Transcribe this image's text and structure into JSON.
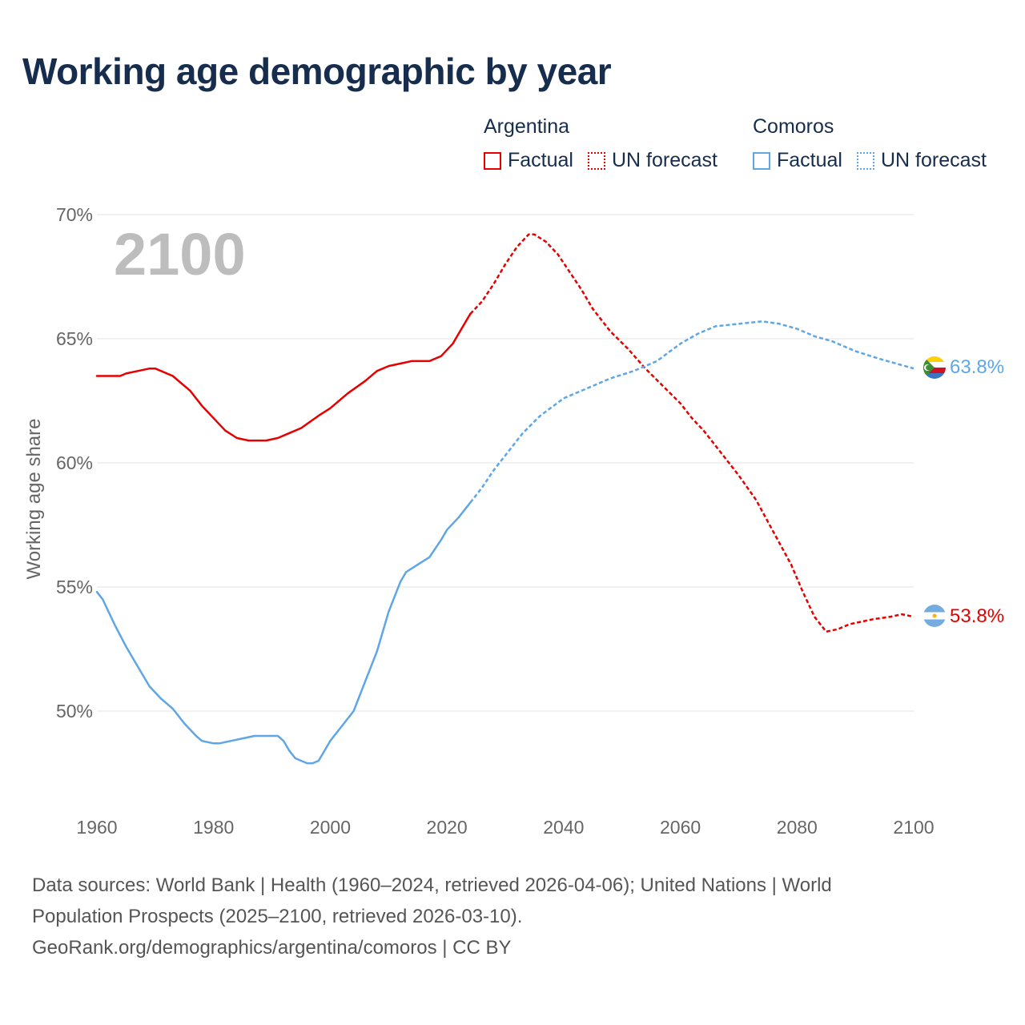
{
  "title": "Working age demographic by year",
  "legend": {
    "groups": [
      {
        "name": "Argentina",
        "color": "#e60000",
        "factual_label": "Factual",
        "forecast_label": "UN forecast"
      },
      {
        "name": "Comoros",
        "color": "#5fa6e6",
        "factual_label": "Factual",
        "forecast_label": "UN forecast"
      }
    ]
  },
  "year_label": "2100",
  "end_labels": {
    "comoros": "63.8%",
    "argentina": "53.8%"
  },
  "sources": {
    "line1": "Data sources: World Bank | Health (1960–2024, retrieved 2026-04-06); United Nations | World",
    "line2": "Population Prospects (2025–2100, retrieved 2026-03-10).",
    "line3": "GeoRank.org/demographics/argentina/comoros | CC BY"
  },
  "chart_data": {
    "type": "line",
    "title": "Working age demographic by year",
    "xlabel": "",
    "ylabel": "Working age share",
    "xlim": [
      1960,
      2100
    ],
    "ylim": [
      46,
      70
    ],
    "xticks": [
      1960,
      1980,
      2000,
      2020,
      2040,
      2060,
      2080,
      2100
    ],
    "xtick_labels": [
      "1960",
      "1980",
      "2000",
      "2020",
      "2040",
      "2060",
      "2080",
      "2100"
    ],
    "yticks": [
      50,
      55,
      60,
      65,
      70
    ],
    "ytick_labels": [
      "50%",
      "55%",
      "60%",
      "65%",
      "70%"
    ],
    "grid": true,
    "legend_position": "top-right",
    "factual_end_year": 2024,
    "series": [
      {
        "name": "Argentina",
        "color": "#e60000",
        "end_label": "53.8%",
        "points": [
          [
            1960,
            63.5
          ],
          [
            1964,
            63.5
          ],
          [
            1965,
            63.6
          ],
          [
            1967,
            63.7
          ],
          [
            1969,
            63.8
          ],
          [
            1970,
            63.8
          ],
          [
            1973,
            63.5
          ],
          [
            1976,
            62.9
          ],
          [
            1978,
            62.3
          ],
          [
            1980,
            61.8
          ],
          [
            1982,
            61.3
          ],
          [
            1984,
            61.0
          ],
          [
            1986,
            60.9
          ],
          [
            1989,
            60.9
          ],
          [
            1991,
            61.0
          ],
          [
            1993,
            61.2
          ],
          [
            1995,
            61.4
          ],
          [
            1998,
            61.9
          ],
          [
            2000,
            62.2
          ],
          [
            2003,
            62.8
          ],
          [
            2006,
            63.3
          ],
          [
            2008,
            63.7
          ],
          [
            2010,
            63.9
          ],
          [
            2012,
            64.0
          ],
          [
            2014,
            64.1
          ],
          [
            2017,
            64.1
          ],
          [
            2019,
            64.3
          ],
          [
            2021,
            64.8
          ],
          [
            2022,
            65.2
          ],
          [
            2024,
            66.0
          ],
          [
            2026,
            66.5
          ],
          [
            2028,
            67.2
          ],
          [
            2030,
            68.0
          ],
          [
            2032,
            68.7
          ],
          [
            2034,
            69.2
          ],
          [
            2035,
            69.2
          ],
          [
            2037,
            68.9
          ],
          [
            2039,
            68.4
          ],
          [
            2041,
            67.7
          ],
          [
            2043,
            67.0
          ],
          [
            2045,
            66.2
          ],
          [
            2048,
            65.3
          ],
          [
            2051,
            64.6
          ],
          [
            2054,
            63.8
          ],
          [
            2057,
            63.1
          ],
          [
            2060,
            62.4
          ],
          [
            2062,
            61.8
          ],
          [
            2064,
            61.3
          ],
          [
            2067,
            60.4
          ],
          [
            2070,
            59.5
          ],
          [
            2073,
            58.5
          ],
          [
            2076,
            57.2
          ],
          [
            2079,
            55.9
          ],
          [
            2081,
            54.8
          ],
          [
            2083,
            53.8
          ],
          [
            2085,
            53.2
          ],
          [
            2087,
            53.3
          ],
          [
            2089,
            53.5
          ],
          [
            2091,
            53.6
          ],
          [
            2093,
            53.7
          ],
          [
            2096,
            53.8
          ],
          [
            2098,
            53.9
          ],
          [
            2100,
            53.8
          ]
        ]
      },
      {
        "name": "Comoros",
        "color": "#5fa6e6",
        "end_label": "63.8%",
        "points": [
          [
            1960,
            54.8
          ],
          [
            1961,
            54.5
          ],
          [
            1963,
            53.5
          ],
          [
            1965,
            52.6
          ],
          [
            1967,
            51.8
          ],
          [
            1969,
            51.0
          ],
          [
            1971,
            50.5
          ],
          [
            1973,
            50.1
          ],
          [
            1975,
            49.5
          ],
          [
            1977,
            49.0
          ],
          [
            1978,
            48.8
          ],
          [
            1980,
            48.7
          ],
          [
            1981,
            48.7
          ],
          [
            1983,
            48.8
          ],
          [
            1985,
            48.9
          ],
          [
            1987,
            49.0
          ],
          [
            1990,
            49.0
          ],
          [
            1991,
            49.0
          ],
          [
            1992,
            48.8
          ],
          [
            1993,
            48.4
          ],
          [
            1994,
            48.1
          ],
          [
            1996,
            47.9
          ],
          [
            1997,
            47.9
          ],
          [
            1998,
            48.0
          ],
          [
            2000,
            48.8
          ],
          [
            2002,
            49.4
          ],
          [
            2004,
            50.0
          ],
          [
            2006,
            51.2
          ],
          [
            2008,
            52.4
          ],
          [
            2010,
            54.0
          ],
          [
            2012,
            55.2
          ],
          [
            2013,
            55.6
          ],
          [
            2015,
            55.9
          ],
          [
            2017,
            56.2
          ],
          [
            2019,
            56.9
          ],
          [
            2020,
            57.3
          ],
          [
            2022,
            57.8
          ],
          [
            2024,
            58.4
          ],
          [
            2026,
            59.0
          ],
          [
            2028,
            59.7
          ],
          [
            2030,
            60.3
          ],
          [
            2033,
            61.2
          ],
          [
            2036,
            61.9
          ],
          [
            2040,
            62.6
          ],
          [
            2044,
            63.0
          ],
          [
            2048,
            63.4
          ],
          [
            2052,
            63.7
          ],
          [
            2056,
            64.1
          ],
          [
            2060,
            64.8
          ],
          [
            2063,
            65.2
          ],
          [
            2066,
            65.5
          ],
          [
            2070,
            65.6
          ],
          [
            2074,
            65.7
          ],
          [
            2077,
            65.6
          ],
          [
            2080,
            65.4
          ],
          [
            2083,
            65.1
          ],
          [
            2086,
            64.9
          ],
          [
            2090,
            64.5
          ],
          [
            2094,
            64.2
          ],
          [
            2097,
            64.0
          ],
          [
            2100,
            63.8
          ]
        ]
      }
    ]
  }
}
